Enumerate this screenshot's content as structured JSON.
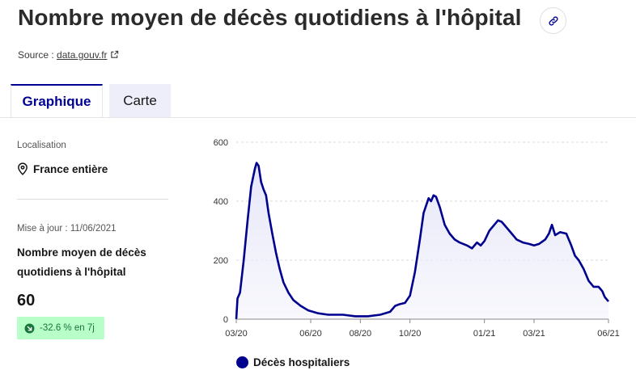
{
  "header": {
    "title": "Nombre moyen de décès quotidiens à l'hôpital",
    "source_prefix": "Source :",
    "source_link": "data.gouv.fr"
  },
  "tabs": [
    {
      "label": "Graphique",
      "active": true
    },
    {
      "label": "Carte",
      "active": false
    }
  ],
  "sidebar": {
    "location_label": "Localisation",
    "location_value": "France entière",
    "update_text": "Mise à jour : 11/06/2021",
    "indicator_title": "Nombre moyen de décès quotidiens à l'hôpital",
    "indicator_value": "60",
    "trend_text": "-32.6 % en 7j",
    "trend_color": "#18753c"
  },
  "colors": {
    "accent": "#000091",
    "series": "#00008f",
    "badge_bg": "#b8fec9"
  },
  "chart_data": {
    "type": "area",
    "x_tick_labels": [
      "03/20",
      "06/20",
      "08/20",
      "10/20",
      "01/21",
      "03/21",
      "06/21"
    ],
    "x_tick_months": [
      0,
      3,
      5,
      7,
      10,
      12,
      15
    ],
    "y_ticks": [
      0,
      200,
      400,
      600
    ],
    "ylim": [
      0,
      600
    ],
    "grid": true,
    "legend_position": "bottom-left",
    "series": [
      {
        "name": "Décès hospitaliers",
        "color": "#00008f",
        "points": [
          {
            "m": 0.0,
            "v": 0
          },
          {
            "m": 0.05,
            "v": 70
          },
          {
            "m": 0.15,
            "v": 90
          },
          {
            "m": 0.3,
            "v": 200
          },
          {
            "m": 0.45,
            "v": 330
          },
          {
            "m": 0.6,
            "v": 450
          },
          {
            "m": 0.75,
            "v": 510
          },
          {
            "m": 0.82,
            "v": 530
          },
          {
            "m": 0.9,
            "v": 520
          },
          {
            "m": 1.0,
            "v": 465
          },
          {
            "m": 1.1,
            "v": 440
          },
          {
            "m": 1.2,
            "v": 420
          },
          {
            "m": 1.3,
            "v": 360
          },
          {
            "m": 1.45,
            "v": 290
          },
          {
            "m": 1.6,
            "v": 225
          },
          {
            "m": 1.75,
            "v": 170
          },
          {
            "m": 1.9,
            "v": 125
          },
          {
            "m": 2.1,
            "v": 90
          },
          {
            "m": 2.3,
            "v": 65
          },
          {
            "m": 2.6,
            "v": 45
          },
          {
            "m": 2.9,
            "v": 30
          },
          {
            "m": 3.3,
            "v": 20
          },
          {
            "m": 3.7,
            "v": 15
          },
          {
            "m": 4.3,
            "v": 15
          },
          {
            "m": 4.8,
            "v": 10
          },
          {
            "m": 5.3,
            "v": 10
          },
          {
            "m": 5.8,
            "v": 15
          },
          {
            "m": 6.2,
            "v": 25
          },
          {
            "m": 6.4,
            "v": 45
          },
          {
            "m": 6.55,
            "v": 50
          },
          {
            "m": 6.8,
            "v": 55
          },
          {
            "m": 7.0,
            "v": 80
          },
          {
            "m": 7.2,
            "v": 160
          },
          {
            "m": 7.4,
            "v": 270
          },
          {
            "m": 7.55,
            "v": 360
          },
          {
            "m": 7.75,
            "v": 410
          },
          {
            "m": 7.85,
            "v": 400
          },
          {
            "m": 7.95,
            "v": 420
          },
          {
            "m": 8.05,
            "v": 415
          },
          {
            "m": 8.2,
            "v": 380
          },
          {
            "m": 8.4,
            "v": 320
          },
          {
            "m": 8.6,
            "v": 290
          },
          {
            "m": 8.8,
            "v": 270
          },
          {
            "m": 9.0,
            "v": 260
          },
          {
            "m": 9.3,
            "v": 250
          },
          {
            "m": 9.5,
            "v": 240
          },
          {
            "m": 9.7,
            "v": 260
          },
          {
            "m": 9.85,
            "v": 250
          },
          {
            "m": 10.0,
            "v": 265
          },
          {
            "m": 10.2,
            "v": 300
          },
          {
            "m": 10.4,
            "v": 320
          },
          {
            "m": 10.55,
            "v": 335
          },
          {
            "m": 10.7,
            "v": 330
          },
          {
            "m": 10.9,
            "v": 310
          },
          {
            "m": 11.1,
            "v": 290
          },
          {
            "m": 11.3,
            "v": 270
          },
          {
            "m": 11.55,
            "v": 260
          },
          {
            "m": 11.8,
            "v": 255
          },
          {
            "m": 12.0,
            "v": 250
          },
          {
            "m": 12.2,
            "v": 255
          },
          {
            "m": 12.45,
            "v": 270
          },
          {
            "m": 12.6,
            "v": 290
          },
          {
            "m": 12.72,
            "v": 320
          },
          {
            "m": 12.85,
            "v": 285
          },
          {
            "m": 13.05,
            "v": 295
          },
          {
            "m": 13.3,
            "v": 290
          },
          {
            "m": 13.5,
            "v": 250
          },
          {
            "m": 13.65,
            "v": 215
          },
          {
            "m": 13.8,
            "v": 200
          },
          {
            "m": 14.0,
            "v": 170
          },
          {
            "m": 14.2,
            "v": 130
          },
          {
            "m": 14.4,
            "v": 110
          },
          {
            "m": 14.6,
            "v": 110
          },
          {
            "m": 14.75,
            "v": 95
          },
          {
            "m": 14.85,
            "v": 75
          },
          {
            "m": 15.0,
            "v": 60
          }
        ]
      }
    ]
  }
}
